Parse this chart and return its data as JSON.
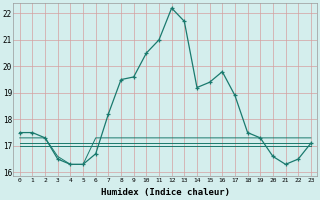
{
  "xlabel": "Humidex (Indice chaleur)",
  "x": [
    0,
    1,
    2,
    3,
    4,
    5,
    6,
    7,
    8,
    9,
    10,
    11,
    12,
    13,
    14,
    15,
    16,
    17,
    18,
    19,
    20,
    21,
    22,
    23
  ],
  "line1": [
    17.5,
    17.5,
    17.3,
    16.5,
    16.3,
    16.3,
    16.7,
    18.2,
    19.5,
    19.6,
    20.5,
    21.0,
    22.2,
    21.7,
    19.2,
    19.4,
    19.8,
    18.9,
    17.5,
    17.3,
    16.6,
    16.3,
    16.5,
    17.1
  ],
  "line2": [
    17.3,
    17.3,
    17.3,
    16.6,
    16.3,
    16.3,
    17.3,
    17.3,
    17.3,
    17.3,
    17.3,
    17.3,
    17.3,
    17.3,
    17.3,
    17.3,
    17.3,
    17.3,
    17.3,
    17.3,
    17.3,
    17.3,
    17.3,
    17.3
  ],
  "line3": [
    17.0,
    17.0,
    17.0,
    17.0,
    17.0,
    17.0,
    17.0,
    17.0,
    17.0,
    17.0,
    17.0,
    17.0,
    17.0,
    17.0,
    17.0,
    17.0,
    17.0,
    17.0,
    17.0,
    17.0,
    17.0,
    17.0,
    17.0,
    17.0
  ],
  "line4": [
    17.1,
    17.1,
    17.1,
    17.1,
    17.1,
    17.1,
    17.1,
    17.1,
    17.1,
    17.1,
    17.1,
    17.1,
    17.1,
    17.1,
    17.1,
    17.1,
    17.1,
    17.1,
    17.1,
    17.1,
    17.1,
    17.1,
    17.1,
    17.1
  ],
  "line_color": "#1a7a6e",
  "bg_color": "#d4eeed",
  "grid_color": "#d4a0a0",
  "ylim": [
    15.85,
    22.4
  ],
  "yticks": [
    16,
    17,
    18,
    19,
    20,
    21,
    22
  ],
  "xlim": [
    -0.5,
    23.5
  ]
}
